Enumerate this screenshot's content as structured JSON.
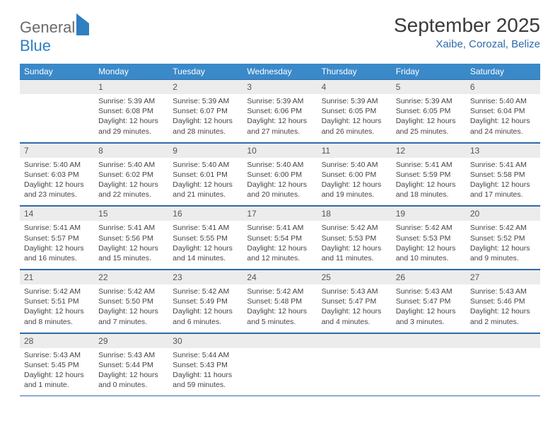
{
  "logo": {
    "line1": "General",
    "line2": "Blue"
  },
  "title": "September 2025",
  "subtitle": "Xaibe, Corozal, Belize",
  "colors": {
    "header_bg": "#3a89c9",
    "header_text": "#ffffff",
    "rule": "#2f6aa8",
    "daynum_bg": "#ececec",
    "body_text": "#444444",
    "subtitle_text": "#2f6aa8"
  },
  "weekdays": [
    "Sunday",
    "Monday",
    "Tuesday",
    "Wednesday",
    "Thursday",
    "Friday",
    "Saturday"
  ],
  "weeks": [
    [
      null,
      {
        "n": "1",
        "sr": "5:39 AM",
        "ss": "6:08 PM",
        "dl": "12 hours and 29 minutes."
      },
      {
        "n": "2",
        "sr": "5:39 AM",
        "ss": "6:07 PM",
        "dl": "12 hours and 28 minutes."
      },
      {
        "n": "3",
        "sr": "5:39 AM",
        "ss": "6:06 PM",
        "dl": "12 hours and 27 minutes."
      },
      {
        "n": "4",
        "sr": "5:39 AM",
        "ss": "6:05 PM",
        "dl": "12 hours and 26 minutes."
      },
      {
        "n": "5",
        "sr": "5:39 AM",
        "ss": "6:05 PM",
        "dl": "12 hours and 25 minutes."
      },
      {
        "n": "6",
        "sr": "5:40 AM",
        "ss": "6:04 PM",
        "dl": "12 hours and 24 minutes."
      }
    ],
    [
      {
        "n": "7",
        "sr": "5:40 AM",
        "ss": "6:03 PM",
        "dl": "12 hours and 23 minutes."
      },
      {
        "n": "8",
        "sr": "5:40 AM",
        "ss": "6:02 PM",
        "dl": "12 hours and 22 minutes."
      },
      {
        "n": "9",
        "sr": "5:40 AM",
        "ss": "6:01 PM",
        "dl": "12 hours and 21 minutes."
      },
      {
        "n": "10",
        "sr": "5:40 AM",
        "ss": "6:00 PM",
        "dl": "12 hours and 20 minutes."
      },
      {
        "n": "11",
        "sr": "5:40 AM",
        "ss": "6:00 PM",
        "dl": "12 hours and 19 minutes."
      },
      {
        "n": "12",
        "sr": "5:41 AM",
        "ss": "5:59 PM",
        "dl": "12 hours and 18 minutes."
      },
      {
        "n": "13",
        "sr": "5:41 AM",
        "ss": "5:58 PM",
        "dl": "12 hours and 17 minutes."
      }
    ],
    [
      {
        "n": "14",
        "sr": "5:41 AM",
        "ss": "5:57 PM",
        "dl": "12 hours and 16 minutes."
      },
      {
        "n": "15",
        "sr": "5:41 AM",
        "ss": "5:56 PM",
        "dl": "12 hours and 15 minutes."
      },
      {
        "n": "16",
        "sr": "5:41 AM",
        "ss": "5:55 PM",
        "dl": "12 hours and 14 minutes."
      },
      {
        "n": "17",
        "sr": "5:41 AM",
        "ss": "5:54 PM",
        "dl": "12 hours and 12 minutes."
      },
      {
        "n": "18",
        "sr": "5:42 AM",
        "ss": "5:53 PM",
        "dl": "12 hours and 11 minutes."
      },
      {
        "n": "19",
        "sr": "5:42 AM",
        "ss": "5:53 PM",
        "dl": "12 hours and 10 minutes."
      },
      {
        "n": "20",
        "sr": "5:42 AM",
        "ss": "5:52 PM",
        "dl": "12 hours and 9 minutes."
      }
    ],
    [
      {
        "n": "21",
        "sr": "5:42 AM",
        "ss": "5:51 PM",
        "dl": "12 hours and 8 minutes."
      },
      {
        "n": "22",
        "sr": "5:42 AM",
        "ss": "5:50 PM",
        "dl": "12 hours and 7 minutes."
      },
      {
        "n": "23",
        "sr": "5:42 AM",
        "ss": "5:49 PM",
        "dl": "12 hours and 6 minutes."
      },
      {
        "n": "24",
        "sr": "5:42 AM",
        "ss": "5:48 PM",
        "dl": "12 hours and 5 minutes."
      },
      {
        "n": "25",
        "sr": "5:43 AM",
        "ss": "5:47 PM",
        "dl": "12 hours and 4 minutes."
      },
      {
        "n": "26",
        "sr": "5:43 AM",
        "ss": "5:47 PM",
        "dl": "12 hours and 3 minutes."
      },
      {
        "n": "27",
        "sr": "5:43 AM",
        "ss": "5:46 PM",
        "dl": "12 hours and 2 minutes."
      }
    ],
    [
      {
        "n": "28",
        "sr": "5:43 AM",
        "ss": "5:45 PM",
        "dl": "12 hours and 1 minute."
      },
      {
        "n": "29",
        "sr": "5:43 AM",
        "ss": "5:44 PM",
        "dl": "12 hours and 0 minutes."
      },
      {
        "n": "30",
        "sr": "5:44 AM",
        "ss": "5:43 PM",
        "dl": "11 hours and 59 minutes."
      },
      null,
      null,
      null,
      null
    ]
  ],
  "labels": {
    "sunrise": "Sunrise: ",
    "sunset": "Sunset: ",
    "daylight": "Daylight: "
  }
}
